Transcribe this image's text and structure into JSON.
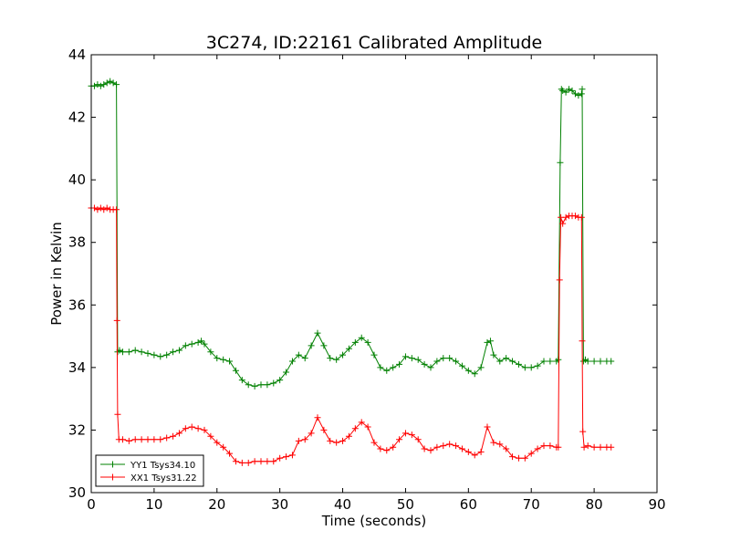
{
  "chart_data": {
    "type": "line",
    "title": "3C274, ID:22161 Calibrated Amplitude",
    "xlabel": "Time (seconds)",
    "ylabel": "Power in Kelvin",
    "xlim": [
      0,
      90
    ],
    "ylim": [
      30,
      44
    ],
    "xticks": [
      0,
      10,
      20,
      30,
      40,
      50,
      60,
      70,
      80,
      90
    ],
    "yticks": [
      30,
      32,
      34,
      36,
      38,
      40,
      42,
      44
    ],
    "grid": false,
    "legend_position": "lower-left",
    "marker": "plus",
    "series": [
      {
        "name": "YY1 Tsys34.10",
        "color": "#008000",
        "points": [
          [
            0.0,
            43.0
          ],
          [
            0.5,
            43.0
          ],
          [
            1.0,
            43.05
          ],
          [
            1.5,
            43.0
          ],
          [
            2.0,
            43.05
          ],
          [
            2.5,
            43.1
          ],
          [
            3.0,
            43.15
          ],
          [
            3.5,
            43.1
          ],
          [
            4.0,
            43.05
          ],
          [
            4.2,
            34.5
          ],
          [
            4.5,
            34.55
          ],
          [
            5.0,
            34.5
          ],
          [
            6.0,
            34.5
          ],
          [
            7.0,
            34.55
          ],
          [
            8.0,
            34.5
          ],
          [
            9.0,
            34.45
          ],
          [
            10.0,
            34.4
          ],
          [
            11.0,
            34.35
          ],
          [
            12.0,
            34.4
          ],
          [
            13.0,
            34.5
          ],
          [
            14.0,
            34.55
          ],
          [
            15.0,
            34.7
          ],
          [
            16.0,
            34.75
          ],
          [
            17.0,
            34.8
          ],
          [
            17.5,
            34.85
          ],
          [
            18.0,
            34.75
          ],
          [
            19.0,
            34.5
          ],
          [
            20.0,
            34.3
          ],
          [
            21.0,
            34.25
          ],
          [
            22.0,
            34.2
          ],
          [
            23.0,
            33.9
          ],
          [
            24.0,
            33.6
          ],
          [
            25.0,
            33.45
          ],
          [
            26.0,
            33.4
          ],
          [
            27.0,
            33.45
          ],
          [
            28.0,
            33.45
          ],
          [
            29.0,
            33.5
          ],
          [
            30.0,
            33.6
          ],
          [
            31.0,
            33.85
          ],
          [
            32.0,
            34.2
          ],
          [
            33.0,
            34.4
          ],
          [
            34.0,
            34.3
          ],
          [
            35.0,
            34.7
          ],
          [
            36.0,
            35.1
          ],
          [
            37.0,
            34.7
          ],
          [
            38.0,
            34.3
          ],
          [
            39.0,
            34.25
          ],
          [
            40.0,
            34.4
          ],
          [
            41.0,
            34.6
          ],
          [
            42.0,
            34.8
          ],
          [
            43.0,
            34.95
          ],
          [
            44.0,
            34.8
          ],
          [
            45.0,
            34.4
          ],
          [
            46.0,
            34.0
          ],
          [
            47.0,
            33.9
          ],
          [
            48.0,
            34.0
          ],
          [
            49.0,
            34.1
          ],
          [
            50.0,
            34.35
          ],
          [
            51.0,
            34.3
          ],
          [
            52.0,
            34.25
          ],
          [
            53.0,
            34.1
          ],
          [
            54.0,
            34.0
          ],
          [
            55.0,
            34.2
          ],
          [
            56.0,
            34.3
          ],
          [
            57.0,
            34.3
          ],
          [
            58.0,
            34.2
          ],
          [
            59.0,
            34.05
          ],
          [
            60.0,
            33.9
          ],
          [
            61.0,
            33.8
          ],
          [
            62.0,
            34.0
          ],
          [
            63.0,
            34.8
          ],
          [
            63.5,
            34.85
          ],
          [
            64.0,
            34.4
          ],
          [
            65.0,
            34.2
          ],
          [
            66.0,
            34.3
          ],
          [
            67.0,
            34.2
          ],
          [
            68.0,
            34.1
          ],
          [
            69.0,
            34.0
          ],
          [
            70.0,
            34.0
          ],
          [
            71.0,
            34.05
          ],
          [
            72.0,
            34.2
          ],
          [
            73.0,
            34.2
          ],
          [
            74.0,
            34.2
          ],
          [
            74.3,
            34.25
          ],
          [
            74.6,
            40.55
          ],
          [
            74.8,
            42.9
          ],
          [
            75.0,
            42.85
          ],
          [
            75.5,
            42.8
          ],
          [
            76.0,
            42.9
          ],
          [
            76.5,
            42.85
          ],
          [
            77.0,
            42.75
          ],
          [
            77.5,
            42.7
          ],
          [
            78.0,
            42.75
          ],
          [
            78.1,
            42.9
          ],
          [
            78.3,
            34.2
          ],
          [
            78.6,
            34.25
          ],
          [
            79.0,
            34.2
          ],
          [
            80.0,
            34.2
          ],
          [
            81.0,
            34.2
          ],
          [
            82.0,
            34.2
          ],
          [
            82.7,
            34.2
          ]
        ]
      },
      {
        "name": "XX1 Tsys31.22",
        "color": "#ff0000",
        "points": [
          [
            0.0,
            39.1
          ],
          [
            0.5,
            39.1
          ],
          [
            1.0,
            39.05
          ],
          [
            1.5,
            39.1
          ],
          [
            2.0,
            39.05
          ],
          [
            2.5,
            39.1
          ],
          [
            3.0,
            39.05
          ],
          [
            3.5,
            39.05
          ],
          [
            4.0,
            39.05
          ],
          [
            4.1,
            35.5
          ],
          [
            4.2,
            32.5
          ],
          [
            4.4,
            31.7
          ],
          [
            5.0,
            31.7
          ],
          [
            6.0,
            31.65
          ],
          [
            7.0,
            31.7
          ],
          [
            8.0,
            31.7
          ],
          [
            9.0,
            31.7
          ],
          [
            10.0,
            31.7
          ],
          [
            11.0,
            31.7
          ],
          [
            12.0,
            31.75
          ],
          [
            13.0,
            31.8
          ],
          [
            14.0,
            31.9
          ],
          [
            15.0,
            32.05
          ],
          [
            16.0,
            32.1
          ],
          [
            17.0,
            32.05
          ],
          [
            18.0,
            32.0
          ],
          [
            19.0,
            31.8
          ],
          [
            20.0,
            31.6
          ],
          [
            21.0,
            31.45
          ],
          [
            22.0,
            31.25
          ],
          [
            23.0,
            31.0
          ],
          [
            24.0,
            30.95
          ],
          [
            25.0,
            30.95
          ],
          [
            26.0,
            31.0
          ],
          [
            27.0,
            31.0
          ],
          [
            28.0,
            31.0
          ],
          [
            29.0,
            31.0
          ],
          [
            30.0,
            31.1
          ],
          [
            31.0,
            31.15
          ],
          [
            32.0,
            31.2
          ],
          [
            33.0,
            31.65
          ],
          [
            34.0,
            31.7
          ],
          [
            35.0,
            31.9
          ],
          [
            36.0,
            32.4
          ],
          [
            37.0,
            32.0
          ],
          [
            38.0,
            31.65
          ],
          [
            39.0,
            31.6
          ],
          [
            40.0,
            31.65
          ],
          [
            41.0,
            31.8
          ],
          [
            42.0,
            32.05
          ],
          [
            43.0,
            32.25
          ],
          [
            44.0,
            32.1
          ],
          [
            45.0,
            31.6
          ],
          [
            46.0,
            31.4
          ],
          [
            47.0,
            31.35
          ],
          [
            48.0,
            31.45
          ],
          [
            49.0,
            31.7
          ],
          [
            50.0,
            31.9
          ],
          [
            51.0,
            31.85
          ],
          [
            52.0,
            31.7
          ],
          [
            53.0,
            31.4
          ],
          [
            54.0,
            31.35
          ],
          [
            55.0,
            31.45
          ],
          [
            56.0,
            31.5
          ],
          [
            57.0,
            31.55
          ],
          [
            58.0,
            31.5
          ],
          [
            59.0,
            31.4
          ],
          [
            60.0,
            31.3
          ],
          [
            61.0,
            31.2
          ],
          [
            62.0,
            31.3
          ],
          [
            63.0,
            32.1
          ],
          [
            64.0,
            31.6
          ],
          [
            65.0,
            31.55
          ],
          [
            66.0,
            31.4
          ],
          [
            67.0,
            31.15
          ],
          [
            68.0,
            31.1
          ],
          [
            69.0,
            31.1
          ],
          [
            70.0,
            31.25
          ],
          [
            71.0,
            31.4
          ],
          [
            72.0,
            31.5
          ],
          [
            73.0,
            31.5
          ],
          [
            74.0,
            31.45
          ],
          [
            74.3,
            31.45
          ],
          [
            74.5,
            36.8
          ],
          [
            74.7,
            38.8
          ],
          [
            75.0,
            38.6
          ],
          [
            75.5,
            38.8
          ],
          [
            76.0,
            38.85
          ],
          [
            76.5,
            38.85
          ],
          [
            77.0,
            38.85
          ],
          [
            77.5,
            38.8
          ],
          [
            78.0,
            38.8
          ],
          [
            78.1,
            34.85
          ],
          [
            78.2,
            31.95
          ],
          [
            78.4,
            31.45
          ],
          [
            79.0,
            31.5
          ],
          [
            80.0,
            31.45
          ],
          [
            81.0,
            31.45
          ],
          [
            82.0,
            31.45
          ],
          [
            82.7,
            31.45
          ]
        ]
      }
    ]
  }
}
